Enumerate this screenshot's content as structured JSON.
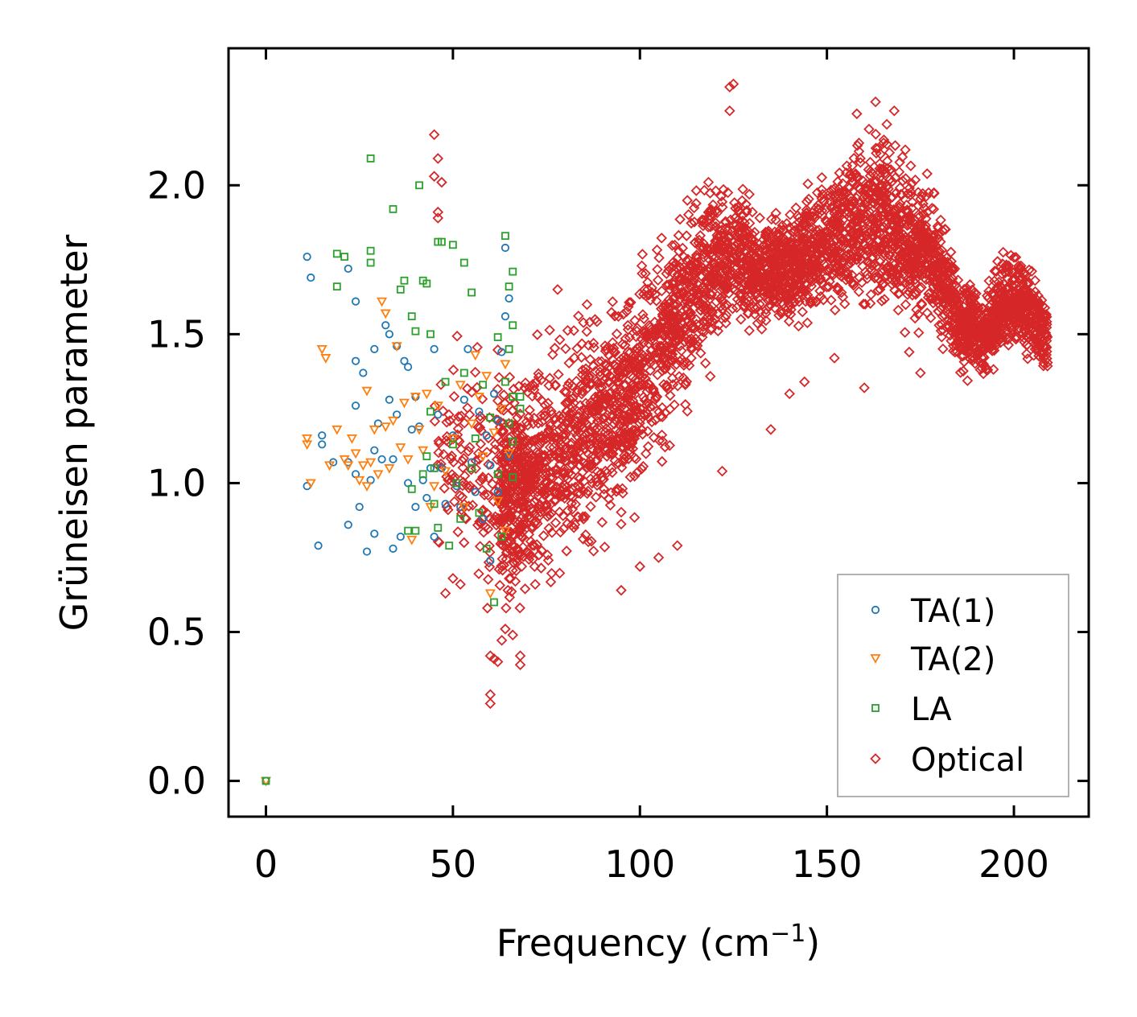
{
  "chart_data": {
    "type": "scatter",
    "title": "",
    "xlabel": "Frequency (cm",
    "xlabel_sup": "−1",
    "xlabel_end": ")",
    "ylabel": "Grüneisen parameter",
    "xlim": [
      -10,
      220
    ],
    "ylim": [
      -0.12,
      2.46
    ],
    "xticks": [
      0,
      50,
      100,
      150,
      200
    ],
    "xtick_labels": [
      "0",
      "50",
      "100",
      "150",
      "200"
    ],
    "yticks": [
      0.0,
      0.5,
      1.0,
      1.5,
      2.0
    ],
    "ytick_labels": [
      "0.0",
      "0.5",
      "1.0",
      "1.5",
      "2.0"
    ],
    "grid": false,
    "legend_position": "lower-right",
    "series": [
      {
        "name": "TA(1)",
        "color": "#1f77b4",
        "marker": "circle",
        "points": [
          [
            0,
            0
          ],
          [
            11,
            0.99
          ],
          [
            11,
            1.76
          ],
          [
            12,
            1.69
          ],
          [
            14,
            0.79
          ],
          [
            15,
            1.13
          ],
          [
            15,
            1.16
          ],
          [
            18,
            1.07
          ],
          [
            22,
            1.72
          ],
          [
            22,
            0.86
          ],
          [
            22,
            1.07
          ],
          [
            24,
            1.61
          ],
          [
            24,
            1.26
          ],
          [
            24,
            1.41
          ],
          [
            24,
            1.03
          ],
          [
            25,
            0.92
          ],
          [
            26,
            1.37
          ],
          [
            27,
            0.77
          ],
          [
            28,
            1.01
          ],
          [
            29,
            1.45
          ],
          [
            29,
            0.83
          ],
          [
            29,
            1.11
          ],
          [
            30,
            1.2
          ],
          [
            31,
            1.08
          ],
          [
            32,
            1.53
          ],
          [
            33,
            1.5
          ],
          [
            33,
            1.28
          ],
          [
            34,
            1.08
          ],
          [
            34,
            0.78
          ],
          [
            35,
            1.46
          ],
          [
            35,
            1.23
          ],
          [
            36,
            0.82
          ],
          [
            37,
            1.41
          ],
          [
            38,
            1.39
          ],
          [
            38,
            1.0
          ],
          [
            39,
            1.18
          ],
          [
            40,
            0.92
          ],
          [
            40,
            1.29
          ],
          [
            41,
            1.19
          ],
          [
            42,
            1.01
          ],
          [
            43,
            0.95
          ],
          [
            44,
            1.05
          ],
          [
            45,
            1.45
          ],
          [
            45,
            0.82
          ],
          [
            46,
            1.23
          ],
          [
            47,
            1.05
          ],
          [
            48,
            0.93
          ],
          [
            50,
            1.16
          ],
          [
            51,
            0.99
          ],
          [
            52,
            0.92
          ],
          [
            53,
            1.28
          ],
          [
            54,
            1.45
          ],
          [
            55,
            1.07
          ],
          [
            56,
            0.97
          ],
          [
            57,
            1.24
          ],
          [
            58,
            0.88
          ],
          [
            59,
            1.16
          ],
          [
            60,
            1.06
          ],
          [
            60,
            0.74
          ],
          [
            61,
            1.3
          ],
          [
            62,
            0.97
          ],
          [
            62,
            1.21
          ],
          [
            63,
            1.44
          ],
          [
            64,
            1.79
          ],
          [
            64,
            1.56
          ],
          [
            65,
            1.62
          ],
          [
            65,
            1.09
          ]
        ]
      },
      {
        "name": "TA(2)",
        "color": "#ff7f0e",
        "marker": "triangle-down",
        "points": [
          [
            0,
            0
          ],
          [
            11,
            1.13
          ],
          [
            11,
            1.15
          ],
          [
            12,
            1.0
          ],
          [
            15,
            1.45
          ],
          [
            16,
            1.42
          ],
          [
            17,
            1.06
          ],
          [
            19,
            1.18
          ],
          [
            21,
            1.08
          ],
          [
            22,
            1.06
          ],
          [
            23,
            1.15
          ],
          [
            24,
            1.1
          ],
          [
            25,
            1.01
          ],
          [
            26,
            1.06
          ],
          [
            27,
            1.31
          ],
          [
            27,
            0.99
          ],
          [
            28,
            1.07
          ],
          [
            29,
            1.18
          ],
          [
            30,
            1.03
          ],
          [
            31,
            1.61
          ],
          [
            32,
            1.19
          ],
          [
            32,
            1.57
          ],
          [
            33,
            1.05
          ],
          [
            34,
            1.21
          ],
          [
            35,
            1.46
          ],
          [
            36,
            1.12
          ],
          [
            37,
            1.27
          ],
          [
            38,
            1.08
          ],
          [
            39,
            0.81
          ],
          [
            40,
            1.29
          ],
          [
            41,
            1.18
          ],
          [
            42,
            1.11
          ],
          [
            43,
            1.3
          ],
          [
            44,
            0.92
          ],
          [
            45,
            0.99
          ],
          [
            46,
            1.26
          ],
          [
            48,
            1.04
          ],
          [
            50,
            1.15
          ],
          [
            52,
            1.33
          ],
          [
            53,
            0.92
          ],
          [
            55,
            1.2
          ],
          [
            56,
            1.43
          ],
          [
            57,
            1.29
          ],
          [
            58,
            1.09
          ],
          [
            59,
            1.36
          ],
          [
            60,
            0.63
          ],
          [
            61,
            1.17
          ],
          [
            62,
            0.94
          ],
          [
            63,
            1.25
          ],
          [
            64,
            1.4
          ],
          [
            64,
            0.84
          ],
          [
            65,
            1.1
          ]
        ]
      },
      {
        "name": "LA",
        "color": "#2ca02c",
        "marker": "square",
        "points": [
          [
            0,
            0
          ],
          [
            19,
            1.77
          ],
          [
            19,
            1.66
          ],
          [
            21,
            1.76
          ],
          [
            28,
            2.09
          ],
          [
            28,
            1.78
          ],
          [
            28,
            1.74
          ],
          [
            34,
            1.92
          ],
          [
            36,
            1.65
          ],
          [
            37,
            1.68
          ],
          [
            38,
            0.84
          ],
          [
            39,
            0.98
          ],
          [
            39,
            1.56
          ],
          [
            40,
            1.51
          ],
          [
            40,
            0.84
          ],
          [
            41,
            2.0
          ],
          [
            42,
            1.03
          ],
          [
            42,
            1.68
          ],
          [
            43,
            1.67
          ],
          [
            43,
            1.09
          ],
          [
            44,
            1.24
          ],
          [
            44,
            1.5
          ],
          [
            45,
            1.05
          ],
          [
            45,
            0.93
          ],
          [
            46,
            1.81
          ],
          [
            46,
            0.85
          ],
          [
            47,
            1.81
          ],
          [
            48,
            1.34
          ],
          [
            49,
            0.79
          ],
          [
            50,
            1.8
          ],
          [
            50,
            1.13
          ],
          [
            51,
            1.0
          ],
          [
            52,
            0.88
          ],
          [
            53,
            1.37
          ],
          [
            53,
            1.74
          ],
          [
            55,
            1.05
          ],
          [
            55,
            1.64
          ],
          [
            56,
            1.15
          ],
          [
            57,
            0.9
          ],
          [
            58,
            1.33
          ],
          [
            59,
            0.78
          ],
          [
            60,
            1.22
          ],
          [
            61,
            0.6
          ],
          [
            62,
            1.49
          ],
          [
            62,
            1.03
          ],
          [
            63,
            0.82
          ],
          [
            64,
            1.83
          ],
          [
            64,
            1.34
          ],
          [
            65,
            1.66
          ],
          [
            65,
            1.2
          ],
          [
            66,
            1.71
          ],
          [
            66,
            1.29
          ],
          [
            66,
            1.02
          ],
          [
            66,
            1.53
          ],
          [
            68,
            1.25
          ],
          [
            68,
            1.29
          ],
          [
            65,
            1.45
          ],
          [
            66,
            1.14
          ]
        ]
      },
      {
        "name": "Optical",
        "color": "#d62728",
        "marker": "diamond",
        "description": "dense band of several thousand points spanning ~44-209 cm-1; band centre and spread listed in band_centre/band_spread",
        "band_centre": [
          [
            45,
            1.1
          ],
          [
            55,
            1.05
          ],
          [
            62,
            0.98
          ],
          [
            68,
            1.0
          ],
          [
            75,
            1.05
          ],
          [
            82,
            1.15
          ],
          [
            90,
            1.22
          ],
          [
            98,
            1.28
          ],
          [
            105,
            1.45
          ],
          [
            112,
            1.62
          ],
          [
            118,
            1.72
          ],
          [
            125,
            1.78
          ],
          [
            132,
            1.7
          ],
          [
            140,
            1.72
          ],
          [
            148,
            1.8
          ],
          [
            155,
            1.85
          ],
          [
            162,
            1.88
          ],
          [
            170,
            1.85
          ],
          [
            178,
            1.78
          ],
          [
            185,
            1.55
          ],
          [
            192,
            1.5
          ],
          [
            198,
            1.62
          ],
          [
            204,
            1.58
          ],
          [
            209,
            1.48
          ]
        ],
        "band_spread": [
          [
            45,
            0.3
          ],
          [
            55,
            0.33
          ],
          [
            62,
            0.34
          ],
          [
            68,
            0.28
          ],
          [
            75,
            0.3
          ],
          [
            82,
            0.3
          ],
          [
            90,
            0.3
          ],
          [
            98,
            0.28
          ],
          [
            105,
            0.26
          ],
          [
            112,
            0.25
          ],
          [
            118,
            0.24
          ],
          [
            125,
            0.16
          ],
          [
            132,
            0.15
          ],
          [
            140,
            0.15
          ],
          [
            148,
            0.16
          ],
          [
            155,
            0.2
          ],
          [
            162,
            0.22
          ],
          [
            170,
            0.24
          ],
          [
            178,
            0.18
          ],
          [
            185,
            0.12
          ],
          [
            192,
            0.1
          ],
          [
            198,
            0.12
          ],
          [
            204,
            0.12
          ],
          [
            209,
            0.08
          ]
        ],
        "outliers": [
          [
            45,
            2.17
          ],
          [
            46,
            2.09
          ],
          [
            45,
            2.03
          ],
          [
            47,
            2.01
          ],
          [
            46,
            1.91
          ],
          [
            46,
            1.89
          ],
          [
            48,
            0.63
          ],
          [
            50,
            0.68
          ],
          [
            52,
            0.66
          ],
          [
            60,
            0.42
          ],
          [
            61,
            0.41
          ],
          [
            62,
            0.4
          ],
          [
            60,
            0.29
          ],
          [
            60,
            0.26
          ],
          [
            64,
            0.51
          ],
          [
            66,
            0.49
          ],
          [
            68,
            0.39
          ],
          [
            68,
            0.42
          ],
          [
            72,
            0.66
          ],
          [
            78,
            1.65
          ],
          [
            95,
            0.64
          ],
          [
            100,
            0.72
          ],
          [
            105,
            0.75
          ],
          [
            110,
            0.79
          ],
          [
            122,
            1.04
          ],
          [
            124,
            2.33
          ],
          [
            125,
            2.34
          ],
          [
            124,
            2.25
          ],
          [
            127,
            1.55
          ],
          [
            135,
            1.18
          ],
          [
            140,
            1.3
          ],
          [
            144,
            1.34
          ],
          [
            152,
            1.42
          ],
          [
            158,
            2.24
          ],
          [
            160,
            1.32
          ],
          [
            163,
            2.28
          ],
          [
            165,
            1.9
          ],
          [
            168,
            2.25
          ],
          [
            172,
            1.44
          ],
          [
            175,
            1.37
          ],
          [
            180,
            1.53
          ],
          [
            188,
            1.45
          ],
          [
            193,
            1.38
          ],
          [
            208,
            1.42
          ]
        ]
      }
    ]
  }
}
